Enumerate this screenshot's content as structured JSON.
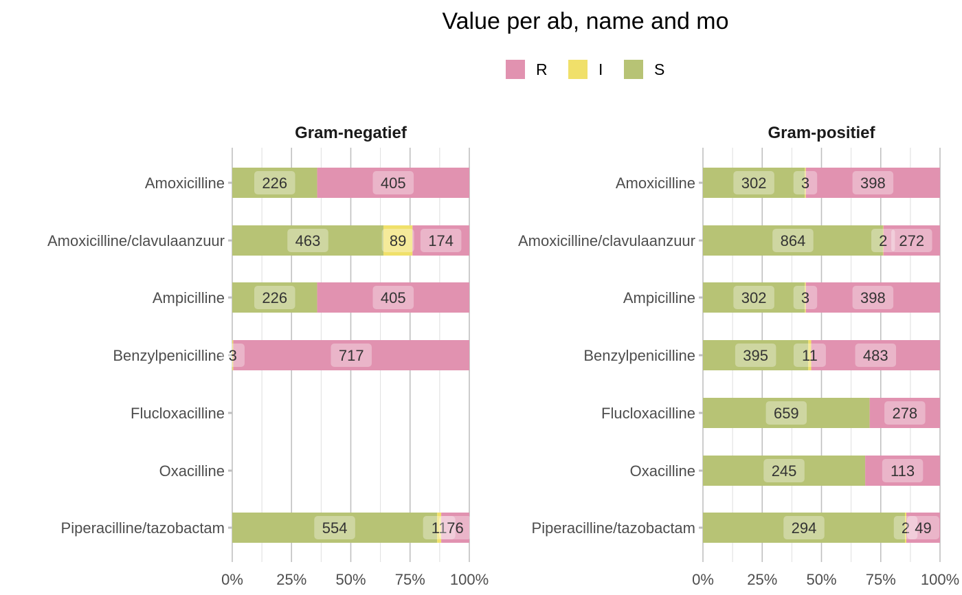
{
  "chart_data": {
    "type": "bar",
    "orientation": "horizontal",
    "stacked": "percent",
    "title": "Value per ab, name and mo",
    "legend": {
      "position": "top",
      "entries": [
        {
          "key": "R",
          "label": "R",
          "color": "#E192B0"
        },
        {
          "key": "I",
          "label": "I",
          "color": "#F0E06A"
        },
        {
          "key": "S",
          "label": "S",
          "color": "#B7C375"
        }
      ]
    },
    "stack_order_left_to_right": [
      "S",
      "I",
      "R"
    ],
    "x_ticks": [
      "0%",
      "25%",
      "50%",
      "75%",
      "100%"
    ],
    "xlim": [
      0,
      1
    ],
    "grid": true,
    "categories": [
      "Amoxicilline",
      "Amoxicilline/clavulaanzuur",
      "Ampicilline",
      "Benzylpenicilline",
      "Flucloxacilline",
      "Oxacilline",
      "Piperacilline/tazobactam"
    ],
    "panels": [
      {
        "name": "Gram-negatief",
        "series": [
          {
            "name": "S",
            "values": [
              226,
              463,
              226,
              0,
              0,
              0,
              554
            ]
          },
          {
            "name": "I",
            "values": [
              0,
              89,
              0,
              3,
              0,
              0,
              11
            ]
          },
          {
            "name": "R",
            "values": [
              405,
              174,
              405,
              717,
              0,
              0,
              76
            ]
          }
        ]
      },
      {
        "name": "Gram-positief",
        "series": [
          {
            "name": "S",
            "values": [
              302,
              864,
              302,
              395,
              659,
              245,
              294
            ]
          },
          {
            "name": "I",
            "values": [
              3,
              2,
              3,
              11,
              0,
              0,
              2
            ]
          },
          {
            "name": "R",
            "values": [
              398,
              272,
              398,
              483,
              278,
              113,
              49
            ]
          }
        ]
      }
    ]
  }
}
